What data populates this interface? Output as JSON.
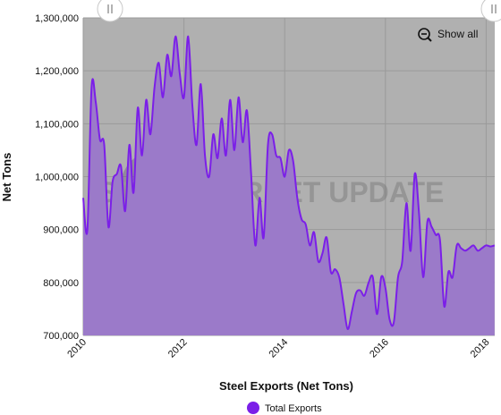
{
  "chart_data": {
    "type": "area",
    "title": "Steel Exports (Net Tons)",
    "ylabel": "Net Tons",
    "xlabel": "",
    "x_start": 2010,
    "x_end": 2018.17,
    "ylim": [
      700000,
      1300000
    ],
    "y_ticks": [
      700000,
      800000,
      900000,
      1000000,
      1100000,
      1200000,
      1300000
    ],
    "y_tick_labels": [
      "700,000",
      "800,000",
      "900,000",
      "1,000,000",
      "1,100,000",
      "1,200,000",
      "1,300,000"
    ],
    "x_ticks": [
      2010,
      2012,
      2014,
      2016,
      2018
    ],
    "x_tick_labels": [
      "2010",
      "2012",
      "2014",
      "2016",
      "2018"
    ],
    "grid": true,
    "legend_position": "bottom-center",
    "watermark": "STEEL MARKET UPDATE",
    "series": [
      {
        "name": "Total Exports",
        "color": "#7b1fe8",
        "fill": "#9b7ac9",
        "x": [
          2010.0,
          2010.083,
          2010.167,
          2010.25,
          2010.333,
          2010.417,
          2010.5,
          2010.583,
          2010.667,
          2010.75,
          2010.833,
          2010.917,
          2011.0,
          2011.083,
          2011.167,
          2011.25,
          2011.333,
          2011.417,
          2011.5,
          2011.583,
          2011.667,
          2011.75,
          2011.833,
          2011.917,
          2012.0,
          2012.083,
          2012.167,
          2012.25,
          2012.333,
          2012.417,
          2012.5,
          2012.583,
          2012.667,
          2012.75,
          2012.833,
          2012.917,
          2013.0,
          2013.083,
          2013.167,
          2013.25,
          2013.333,
          2013.417,
          2013.5,
          2013.583,
          2013.667,
          2013.75,
          2013.833,
          2013.917,
          2014.0,
          2014.083,
          2014.167,
          2014.25,
          2014.333,
          2014.417,
          2014.5,
          2014.583,
          2014.667,
          2014.75,
          2014.833,
          2014.917,
          2015.0,
          2015.083,
          2015.167,
          2015.25,
          2015.333,
          2015.417,
          2015.5,
          2015.583,
          2015.667,
          2015.75,
          2015.833,
          2015.917,
          2016.0,
          2016.083,
          2016.167,
          2016.25,
          2016.333,
          2016.417,
          2016.5,
          2016.583,
          2016.667,
          2016.75,
          2016.833,
          2016.917,
          2017.0,
          2017.083,
          2017.167,
          2017.25,
          2017.333,
          2017.417,
          2017.5,
          2017.583,
          2017.667,
          2017.75,
          2017.833,
          2017.917,
          2018.0,
          2018.083,
          2018.167
        ],
        "values": [
          960000,
          900000,
          1170000,
          1140000,
          1070000,
          1060000,
          905000,
          990000,
          1005000,
          1020000,
          935000,
          1060000,
          970000,
          1130000,
          1040000,
          1145000,
          1080000,
          1170000,
          1215000,
          1150000,
          1230000,
          1190000,
          1265000,
          1195000,
          1150000,
          1265000,
          1135000,
          1060000,
          1175000,
          1040000,
          1000000,
          1080000,
          1035000,
          1110000,
          1040000,
          1145000,
          1050000,
          1150000,
          1065000,
          1125000,
          1005000,
          870000,
          960000,
          885000,
          1060000,
          1080000,
          1040000,
          1035000,
          1000000,
          1050000,
          1030000,
          960000,
          920000,
          910000,
          870000,
          895000,
          840000,
          855000,
          885000,
          820000,
          825000,
          810000,
          760000,
          712000,
          745000,
          780000,
          785000,
          775000,
          800000,
          810000,
          740000,
          810000,
          790000,
          730000,
          725000,
          810000,
          840000,
          950000,
          860000,
          1005000,
          930000,
          810000,
          915000,
          905000,
          890000,
          880000,
          755000,
          820000,
          810000,
          870000,
          865000,
          860000,
          865000,
          870000,
          860000,
          865000,
          870000,
          868000,
          870000
        ]
      }
    ]
  },
  "controls": {
    "show_all_label": "Show all",
    "show_all_icon": "zoom-out-icon",
    "navigator_handle_icon": "drag-handle-icon"
  }
}
